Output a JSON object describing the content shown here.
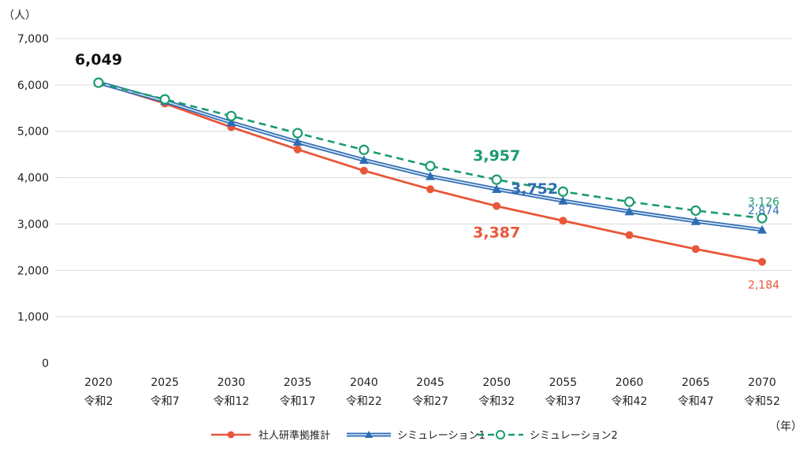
{
  "chart_data": {
    "type": "line",
    "y_unit": "（人）",
    "x_unit": "（年）",
    "ylim": [
      0,
      7000
    ],
    "y_ticks": [
      "7,000",
      "6,000",
      "5,000",
      "4,000",
      "3,000",
      "2,000",
      "1,000",
      "0"
    ],
    "categories": [
      "2020",
      "2025",
      "2030",
      "2035",
      "2040",
      "2045",
      "2050",
      "2055",
      "2060",
      "2065",
      "2070"
    ],
    "categories_sub": [
      "令和2",
      "令和7",
      "令和12",
      "令和17",
      "令和22",
      "令和27",
      "令和32",
      "令和37",
      "令和42",
      "令和47",
      "令和52"
    ],
    "grid": true,
    "legend_position": "bottom",
    "series": [
      {
        "name": "社人研準拠推計",
        "color": "#e8573a",
        "marker": "circle",
        "style": "solid",
        "values": [
          6049,
          5600,
          5090,
          4610,
          4150,
          3750,
          3387,
          3070,
          2760,
          2460,
          2184
        ]
      },
      {
        "name": "シミュレーション1",
        "color": "#2e6db4",
        "marker": "triangle",
        "style": "double",
        "values": [
          6049,
          5650,
          5190,
          4770,
          4380,
          4030,
          3752,
          3500,
          3270,
          3060,
          2874
        ]
      },
      {
        "name": "シミュレーション2",
        "color": "#1a9c6e",
        "marker": "open-circle",
        "style": "dashed",
        "values": [
          6049,
          5690,
          5330,
          4960,
          4600,
          4250,
          3957,
          3700,
          3480,
          3290,
          3126
        ]
      }
    ],
    "annotations": [
      {
        "text": "6,049",
        "series": null,
        "index": 0,
        "color": "#111111",
        "size": "big"
      },
      {
        "text": "3,957",
        "series": 2,
        "index": 6,
        "color": "#1a9c6e",
        "size": "big"
      },
      {
        "text": "3,752",
        "series": 1,
        "index": 6,
        "color": "#2e6db4",
        "size": "big"
      },
      {
        "text": "3,387",
        "series": 0,
        "index": 6,
        "color": "#e8573a",
        "size": "big"
      },
      {
        "text": "3,126",
        "series": 2,
        "index": 10,
        "color": "#1a9c6e",
        "size": "small"
      },
      {
        "text": "2,874",
        "series": 1,
        "index": 10,
        "color": "#2e6db4",
        "size": "small"
      },
      {
        "text": "2,184",
        "series": 0,
        "index": 10,
        "color": "#e8573a",
        "size": "small"
      }
    ]
  }
}
